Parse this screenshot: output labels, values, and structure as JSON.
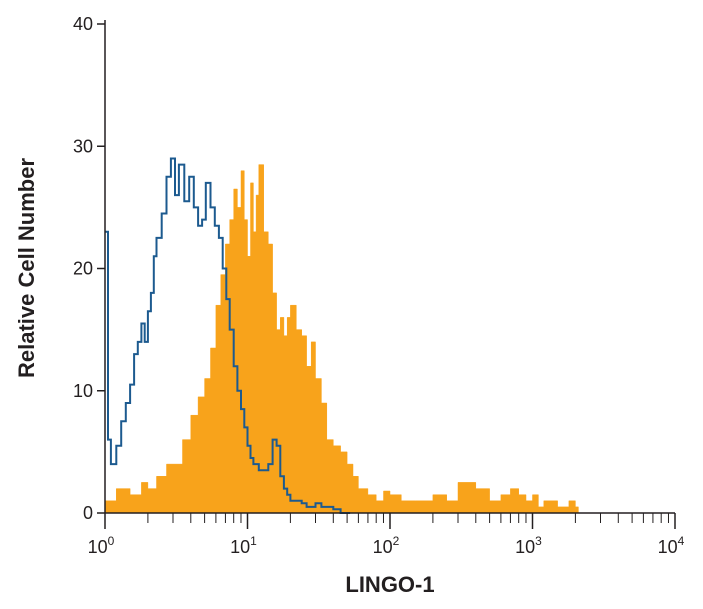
{
  "chart_data": {
    "type": "histogram",
    "title": "",
    "xlabel": "LINGO-1",
    "ylabel": "Relative Cell Number",
    "x_scale": "log",
    "xlim": [
      1,
      10000
    ],
    "ylim": [
      0,
      40
    ],
    "grid": false,
    "legend": "none",
    "x_ticks": [
      {
        "value": 1,
        "base": "10",
        "exp": "0"
      },
      {
        "value": 10,
        "base": "10",
        "exp": "1"
      },
      {
        "value": 100,
        "base": "10",
        "exp": "2"
      },
      {
        "value": 1000,
        "base": "10",
        "exp": "3"
      },
      {
        "value": 10000,
        "base": "10",
        "exp": "4"
      }
    ],
    "y_ticks": [
      "0",
      "10",
      "20",
      "30",
      "40"
    ],
    "series": [
      {
        "color": "#f8a31b",
        "style": "filled",
        "x": [
          1.0,
          1.2,
          1.5,
          1.8,
          2.0,
          2.3,
          2.7,
          3.0,
          3.5,
          4.0,
          4.5,
          5.0,
          5.5,
          6.0,
          6.5,
          7.0,
          7.5,
          8.0,
          8.5,
          9.0,
          9.5,
          10.0,
          10.5,
          11.0,
          11.5,
          12.0,
          13.0,
          14.0,
          15.0,
          16.0,
          17.0,
          18.0,
          19.0,
          20.0,
          22.0,
          24.0,
          26.0,
          28.0,
          30.0,
          33.0,
          36.0,
          40.0,
          45.0,
          50.0,
          55.0,
          60.0,
          70.0,
          80.0,
          90.0,
          100.0,
          120.0,
          150.0,
          200.0,
          250.0,
          300.0,
          400.0,
          500.0,
          600.0,
          700.0,
          800.0,
          900.0,
          1000.0,
          1100.0,
          1200.0,
          1500.0,
          1800.0,
          2000.0
        ],
        "y": [
          1.0,
          2.0,
          1.5,
          2.5,
          2.0,
          3.0,
          4.0,
          4.0,
          6.0,
          8.0,
          9.5,
          11.0,
          13.5,
          17.0,
          19.5,
          22.0,
          24.0,
          26.5,
          25.0,
          28.0,
          24.0,
          21.0,
          27.0,
          23.0,
          26.0,
          28.5,
          23.0,
          22.0,
          18.0,
          15.0,
          16.0,
          14.5,
          16.0,
          17.0,
          15.0,
          14.5,
          12.0,
          14.0,
          11.0,
          9.0,
          6.0,
          5.5,
          5.0,
          4.0,
          3.0,
          2.0,
          1.5,
          1.0,
          1.8,
          1.5,
          1.0,
          1.0,
          1.5,
          1.0,
          2.5,
          2.0,
          1.0,
          1.5,
          2.0,
          1.5,
          1.0,
          1.5,
          0.5,
          1.0,
          0.5,
          1.0,
          0.5
        ]
      },
      {
        "color": "#1c5a8f",
        "style": "step",
        "x": [
          1.0,
          1.05,
          1.1,
          1.2,
          1.3,
          1.4,
          1.5,
          1.6,
          1.7,
          1.8,
          1.9,
          2.0,
          2.1,
          2.2,
          2.3,
          2.5,
          2.7,
          2.9,
          3.1,
          3.3,
          3.6,
          3.9,
          4.2,
          4.5,
          4.8,
          5.1,
          5.5,
          5.9,
          6.3,
          6.7,
          7.1,
          7.5,
          8.0,
          8.5,
          9.0,
          9.5,
          10.0,
          10.5,
          11.0,
          12.0,
          13.0,
          14.0,
          15.0,
          16.0,
          17.0,
          18.0,
          19.0,
          20.0,
          22.0,
          24.0,
          26.0,
          28.0,
          30.0,
          33.0,
          36.0,
          40.0,
          45.0,
          50.0
        ],
        "y": [
          23.0,
          6.0,
          4.0,
          5.5,
          7.5,
          9.0,
          10.5,
          13.0,
          14.0,
          15.5,
          14.0,
          16.5,
          18.0,
          21.0,
          22.5,
          24.5,
          27.5,
          29.0,
          26.0,
          28.5,
          25.5,
          27.5,
          25.0,
          23.5,
          24.0,
          27.0,
          25.0,
          23.5,
          22.5,
          20.0,
          17.5,
          15.0,
          12.0,
          10.0,
          8.5,
          7.0,
          5.5,
          4.5,
          4.0,
          3.5,
          3.5,
          4.0,
          6.0,
          5.5,
          3.0,
          2.0,
          1.5,
          1.0,
          1.0,
          0.8,
          0.5,
          0.5,
          0.8,
          0.5,
          0.5,
          0.3,
          0.0,
          0.0
        ]
      }
    ]
  }
}
